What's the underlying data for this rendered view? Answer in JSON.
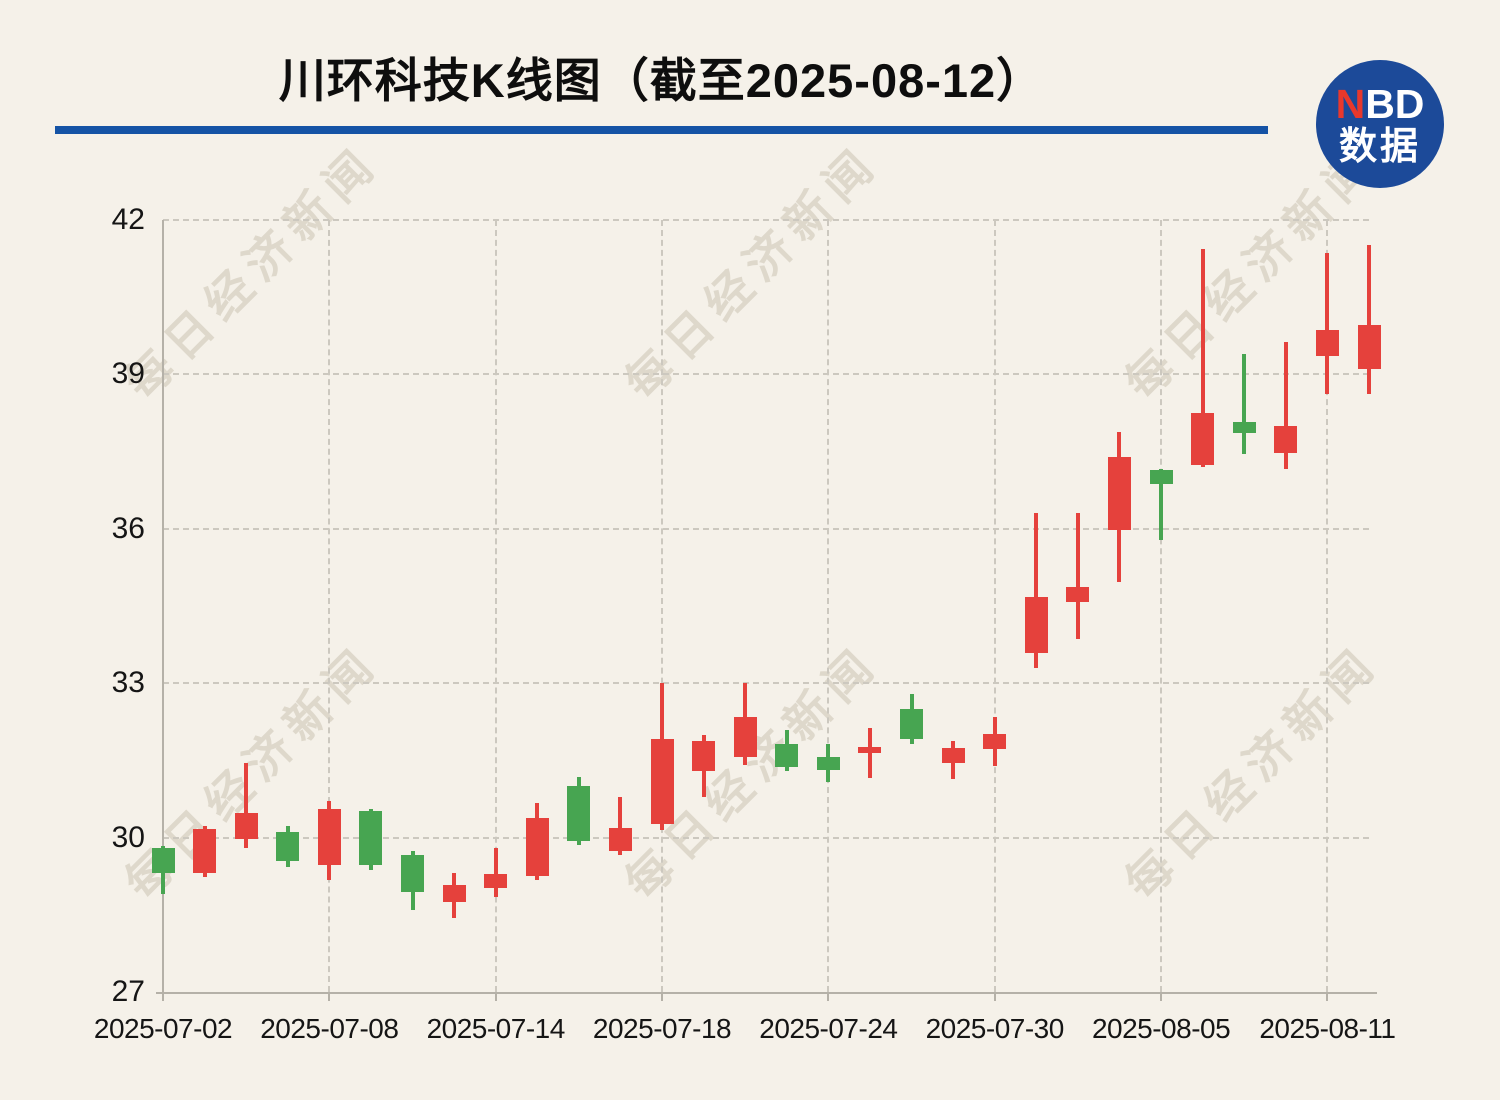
{
  "header": {
    "title": "川环科技K线图（截至2025-08-12）",
    "logo": {
      "n": "N",
      "bd": "BD",
      "line2": "数据"
    }
  },
  "watermark": {
    "text": "每日经济新闻"
  },
  "colors": {
    "up": "#e5413c",
    "down": "#47a551",
    "title_bar": "#1553a5",
    "logo_circle": "#1c4a99",
    "logo_n": "#e8382c",
    "background": "#f5f1e9"
  },
  "chart_data": {
    "type": "candlestick",
    "title": "川环科技K线图（截至2025-08-12）",
    "up_color_meaning": "red = price rose (Chinese convention)",
    "down_color_meaning": "green = price fell",
    "y_axis": {
      "min": 27,
      "max": 42,
      "ticks": [
        42,
        39,
        36,
        33,
        30,
        27
      ],
      "tick_labels": [
        "42",
        "39",
        "36",
        "33",
        "30",
        "27"
      ],
      "grid": "dashed"
    },
    "x_axis": {
      "tick_labels": [
        "2025-07-02",
        "2025-07-08",
        "2025-07-14",
        "2025-07-18",
        "2025-07-24",
        "2025-07-30",
        "2025-08-05",
        "2025-08-11"
      ],
      "tick_every": 4,
      "grid": "dashed"
    },
    "candles": [
      {
        "date": "2025-07-02",
        "open": 29.79,
        "high": 29.83,
        "low": 28.9,
        "close": 29.32
      },
      {
        "date": "2025-07-03",
        "open": 29.31,
        "high": 30.23,
        "low": 29.23,
        "close": 30.17
      },
      {
        "date": "2025-07-04",
        "open": 29.97,
        "high": 31.45,
        "low": 29.8,
        "close": 30.48
      },
      {
        "date": "2025-07-07",
        "open": 30.11,
        "high": 30.23,
        "low": 29.43,
        "close": 29.55
      },
      {
        "date": "2025-07-08",
        "open": 29.47,
        "high": 30.71,
        "low": 29.18,
        "close": 30.56
      },
      {
        "date": "2025-07-09",
        "open": 30.52,
        "high": 30.55,
        "low": 29.37,
        "close": 29.47
      },
      {
        "date": "2025-07-10",
        "open": 29.66,
        "high": 29.74,
        "low": 28.59,
        "close": 28.94
      },
      {
        "date": "2025-07-11",
        "open": 28.75,
        "high": 29.31,
        "low": 28.44,
        "close": 29.08
      },
      {
        "date": "2025-07-14",
        "open": 29.02,
        "high": 29.8,
        "low": 28.85,
        "close": 29.29
      },
      {
        "date": "2025-07-15",
        "open": 29.25,
        "high": 30.67,
        "low": 29.18,
        "close": 30.38
      },
      {
        "date": "2025-07-16",
        "open": 31.0,
        "high": 31.18,
        "low": 29.86,
        "close": 29.93
      },
      {
        "date": "2025-07-17",
        "open": 29.74,
        "high": 30.79,
        "low": 29.66,
        "close": 30.19
      },
      {
        "date": "2025-07-18",
        "open": 30.27,
        "high": 33.0,
        "low": 30.15,
        "close": 31.92
      },
      {
        "date": "2025-07-21",
        "open": 31.29,
        "high": 31.99,
        "low": 30.79,
        "close": 31.88
      },
      {
        "date": "2025-07-22",
        "open": 31.57,
        "high": 33.0,
        "low": 31.41,
        "close": 32.34
      },
      {
        "date": "2025-07-23",
        "open": 31.82,
        "high": 32.09,
        "low": 31.29,
        "close": 31.37
      },
      {
        "date": "2025-07-24",
        "open": 31.57,
        "high": 31.82,
        "low": 31.08,
        "close": 31.31
      },
      {
        "date": "2025-07-25",
        "open": 31.64,
        "high": 32.13,
        "low": 31.16,
        "close": 31.76
      },
      {
        "date": "2025-07-28",
        "open": 32.5,
        "high": 32.79,
        "low": 31.82,
        "close": 31.92
      },
      {
        "date": "2025-07-29",
        "open": 31.45,
        "high": 31.88,
        "low": 31.14,
        "close": 31.74
      },
      {
        "date": "2025-07-30",
        "open": 31.72,
        "high": 32.34,
        "low": 31.39,
        "close": 32.01
      },
      {
        "date": "2025-07-31",
        "open": 33.59,
        "high": 36.31,
        "low": 33.3,
        "close": 34.68
      },
      {
        "date": "2025-08-01",
        "open": 34.58,
        "high": 36.31,
        "low": 33.86,
        "close": 34.87
      },
      {
        "date": "2025-08-04",
        "open": 35.98,
        "high": 37.88,
        "low": 34.97,
        "close": 37.4
      },
      {
        "date": "2025-08-05",
        "open": 37.14,
        "high": 37.16,
        "low": 35.78,
        "close": 36.87
      },
      {
        "date": "2025-08-06",
        "open": 37.24,
        "high": 41.43,
        "low": 37.2,
        "close": 38.25
      },
      {
        "date": "2025-08-07",
        "open": 38.08,
        "high": 39.4,
        "low": 37.45,
        "close": 37.86
      },
      {
        "date": "2025-08-08",
        "open": 37.47,
        "high": 39.63,
        "low": 37.16,
        "close": 38.0
      },
      {
        "date": "2025-08-11",
        "open": 39.36,
        "high": 41.36,
        "low": 38.62,
        "close": 39.86
      },
      {
        "date": "2025-08-12",
        "open": 39.11,
        "high": 41.51,
        "low": 38.62,
        "close": 39.96
      }
    ]
  }
}
